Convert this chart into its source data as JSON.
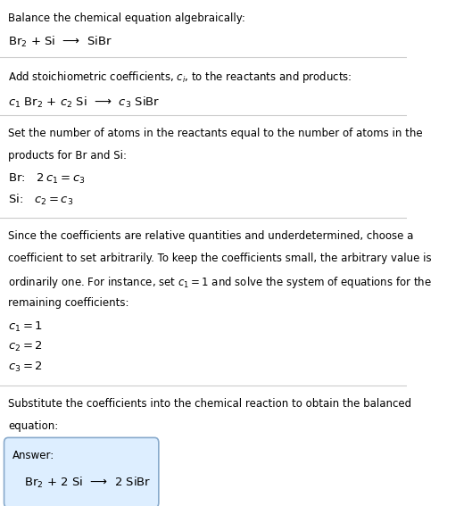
{
  "bg_color": "#ffffff",
  "text_color": "#000000",
  "line_color": "#cccccc",
  "section1_title": "Balance the chemical equation algebraically:",
  "section1_eq": "Br$_2$ + Si  ⟶  SiBr",
  "section2_title": "Add stoichiometric coefficients, $c_i$, to the reactants and products:",
  "section2_eq": "$c_1$ Br$_2$ + $c_2$ Si  ⟶  $c_3$ SiBr",
  "section3_title": "Set the number of atoms in the reactants equal to the number of atoms in the\nproducts for Br and Si:",
  "section3_lines": [
    "Br:   $2\\,c_1 = c_3$",
    "Si:   $c_2 = c_3$"
  ],
  "section4_title": "Since the coefficients are relative quantities and underdetermined, choose a\ncoefficient to set arbitrarily. To keep the coefficients small, the arbitrary value is\nordinarily one. For instance, set $c_1 = 1$ and solve the system of equations for the\nremaining coefficients:",
  "section4_lines": [
    "$c_1 = 1$",
    "$c_2 = 2$",
    "$c_3 = 2$"
  ],
  "section5_title": "Substitute the coefficients into the chemical reaction to obtain the balanced\nequation:",
  "answer_label": "Answer:",
  "answer_eq": "Br$_2$ + 2 Si  ⟶  2 SiBr",
  "box_color": "#ddeeff",
  "box_edge_color": "#88aacc"
}
